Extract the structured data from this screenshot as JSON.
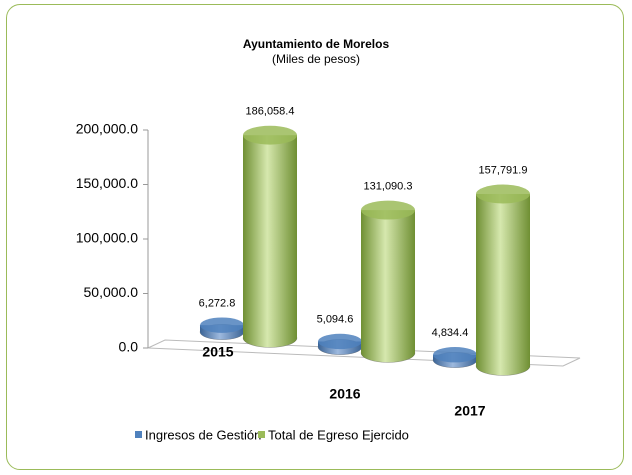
{
  "chart_data": {
    "type": "bar",
    "title": "Ayuntamiento de Morelos",
    "subtitle": "(Miles de pesos)",
    "categories": [
      "2015",
      "2016",
      "2017"
    ],
    "series": [
      {
        "name": "Ingresos de Gestión",
        "color": "#4f81bd",
        "values": [
          6272.8,
          5094.6,
          4834.4
        ],
        "value_labels": [
          "6,272.8",
          "5,094.6",
          "4,834.4"
        ]
      },
      {
        "name": "Total de Egreso Ejercido",
        "color": "#9bbb59",
        "values": [
          186058.4,
          131090.3,
          157791.9
        ],
        "value_labels": [
          "186,058.4",
          "131,090.3",
          "157,791.9"
        ]
      }
    ],
    "ylim": [
      0,
      200000
    ],
    "yticks": [
      {
        "value": 0,
        "label": "0.0"
      },
      {
        "value": 50000,
        "label": "50,000.0"
      },
      {
        "value": 100000,
        "label": "100,000.0"
      },
      {
        "value": 150000,
        "label": "150,000.0"
      },
      {
        "value": 200000,
        "label": "200,000.0"
      }
    ],
    "legend": "bottom"
  }
}
